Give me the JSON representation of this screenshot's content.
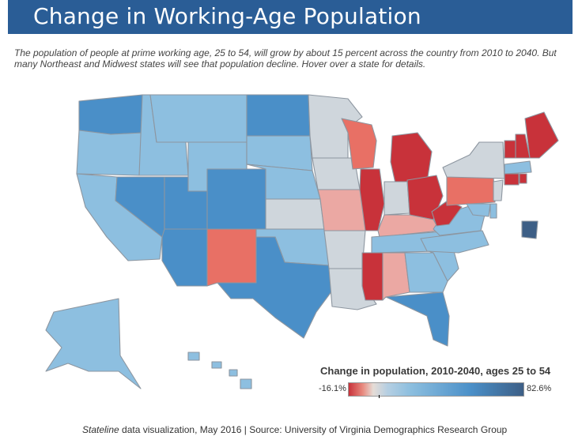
{
  "header": {
    "title": "Change in Working-Age Population"
  },
  "intro": "The population of people at prime working age, 25 to 54, will grow by about 15 percent across the country from 2010 to 2040. But many Northeast and Midwest states will see that population decline. Hover over a state for details.",
  "colors": {
    "decline_strong": "#c8323a",
    "decline_moderate": "#e87065",
    "decline_light": "#eba8a3",
    "neutral": "#cfd6dc",
    "growth_light": "#8dbfe0",
    "growth_strong": "#4a8fc8",
    "growth_max": "#3d5f86"
  },
  "chart_data": {
    "type": "choropleth",
    "title": "Change in population, 2010-2040, ages 25 to 54",
    "scale": {
      "min": -16.1,
      "max": 82.6,
      "min_label": "-16.1%",
      "max_label": "82.6%"
    },
    "states": [
      {
        "name": "Washington",
        "level": "growth_strong"
      },
      {
        "name": "Oregon",
        "level": "growth_light"
      },
      {
        "name": "California",
        "level": "growth_light"
      },
      {
        "name": "Idaho",
        "level": "growth_light"
      },
      {
        "name": "Montana",
        "level": "growth_light"
      },
      {
        "name": "Nevada",
        "level": "growth_strong"
      },
      {
        "name": "Utah",
        "level": "growth_strong"
      },
      {
        "name": "Arizona",
        "level": "growth_strong"
      },
      {
        "name": "Wyoming",
        "level": "growth_light"
      },
      {
        "name": "Colorado",
        "level": "growth_strong"
      },
      {
        "name": "New Mexico",
        "level": "decline_moderate"
      },
      {
        "name": "North Dakota",
        "level": "growth_strong"
      },
      {
        "name": "South Dakota",
        "level": "growth_light"
      },
      {
        "name": "Nebraska",
        "level": "growth_light"
      },
      {
        "name": "Kansas",
        "level": "neutral"
      },
      {
        "name": "Oklahoma",
        "level": "growth_light"
      },
      {
        "name": "Texas",
        "level": "growth_strong"
      },
      {
        "name": "Minnesota",
        "level": "neutral"
      },
      {
        "name": "Iowa",
        "level": "neutral"
      },
      {
        "name": "Missouri",
        "level": "decline_light"
      },
      {
        "name": "Arkansas",
        "level": "neutral"
      },
      {
        "name": "Louisiana",
        "level": "neutral"
      },
      {
        "name": "Wisconsin",
        "level": "decline_moderate"
      },
      {
        "name": "Illinois",
        "level": "decline_strong"
      },
      {
        "name": "Michigan",
        "level": "decline_strong"
      },
      {
        "name": "Indiana",
        "level": "neutral"
      },
      {
        "name": "Ohio",
        "level": "decline_strong"
      },
      {
        "name": "Kentucky",
        "level": "decline_light"
      },
      {
        "name": "Tennessee",
        "level": "growth_light"
      },
      {
        "name": "Mississippi",
        "level": "decline_strong"
      },
      {
        "name": "Alabama",
        "level": "decline_light"
      },
      {
        "name": "Georgia",
        "level": "growth_light"
      },
      {
        "name": "Florida",
        "level": "growth_strong"
      },
      {
        "name": "South Carolina",
        "level": "growth_light"
      },
      {
        "name": "North Carolina",
        "level": "growth_light"
      },
      {
        "name": "Virginia",
        "level": "growth_light"
      },
      {
        "name": "West Virginia",
        "level": "decline_strong"
      },
      {
        "name": "Pennsylvania",
        "level": "decline_moderate"
      },
      {
        "name": "New York",
        "level": "neutral"
      },
      {
        "name": "Vermont",
        "level": "decline_strong"
      },
      {
        "name": "New Hampshire",
        "level": "decline_strong"
      },
      {
        "name": "Maine",
        "level": "decline_strong"
      },
      {
        "name": "Massachusetts",
        "level": "growth_light"
      },
      {
        "name": "Connecticut",
        "level": "decline_strong"
      },
      {
        "name": "Rhode Island",
        "level": "decline_strong"
      },
      {
        "name": "New Jersey",
        "level": "neutral"
      },
      {
        "name": "Delaware",
        "level": "growth_light"
      },
      {
        "name": "Maryland",
        "level": "growth_light"
      },
      {
        "name": "District of Columbia",
        "level": "growth_max"
      },
      {
        "name": "Alaska",
        "level": "growth_light"
      },
      {
        "name": "Hawaii",
        "level": "growth_light"
      }
    ]
  },
  "footer": {
    "publication": "Stateline",
    "text": " data visualization, May 2016 | Source: University of Virginia Demographics Research Group"
  }
}
